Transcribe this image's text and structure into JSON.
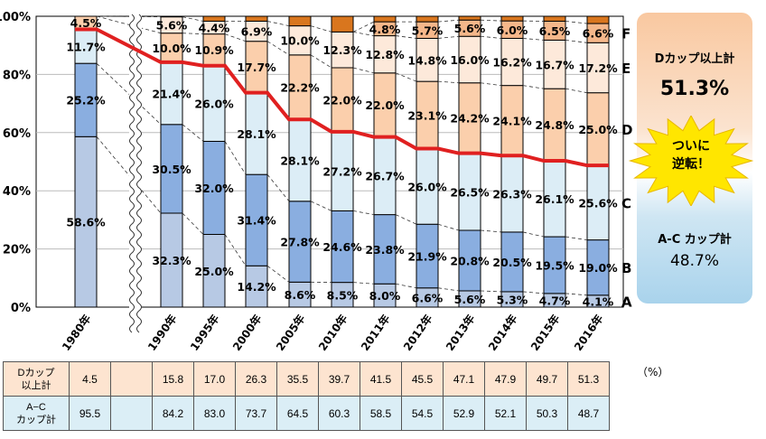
{
  "chart_data": {
    "type": "bar",
    "stacked": true,
    "categories": [
      "1980年",
      "1990年",
      "1995年",
      "2000年",
      "2005年",
      "2010年",
      "2011年",
      "2012年",
      "2013年",
      "2014年",
      "2015年",
      "2016年"
    ],
    "series": [
      {
        "name": "A",
        "color": "#b7c9e4",
        "values": [
          58.6,
          32.3,
          25.0,
          14.2,
          8.6,
          8.5,
          8.0,
          6.6,
          5.6,
          5.3,
          4.7,
          4.1
        ]
      },
      {
        "name": "B",
        "color": "#8aaee0",
        "values": [
          25.2,
          30.5,
          32.0,
          31.4,
          27.8,
          24.6,
          23.8,
          21.9,
          20.8,
          20.5,
          19.5,
          19.0
        ]
      },
      {
        "name": "C",
        "color": "#dcedf6",
        "values": [
          11.7,
          21.4,
          26.0,
          28.1,
          28.1,
          27.2,
          26.7,
          26.0,
          26.5,
          26.3,
          26.1,
          25.6
        ]
      },
      {
        "name": "D",
        "color": "#fbcfac",
        "values": [
          4.5,
          10.0,
          10.9,
          17.7,
          22.2,
          22.0,
          22.0,
          23.1,
          24.2,
          24.1,
          24.8,
          25.0
        ]
      },
      {
        "name": "E",
        "color": "#fde9da",
        "values": [
          null,
          5.6,
          4.4,
          6.9,
          10.0,
          12.3,
          12.8,
          14.8,
          16.0,
          16.2,
          16.7,
          17.2
        ]
      },
      {
        "name": "F",
        "color": "#f5b78a",
        "values": [
          null,
          null,
          null,
          null,
          null,
          null,
          4.8,
          5.7,
          5.6,
          6.0,
          6.5,
          6.6
        ]
      }
    ],
    "top_color": "#d9761e",
    "line": {
      "name": "A-C カップ計",
      "color": "#e02020",
      "values": [
        95.5,
        84.2,
        83.0,
        73.7,
        64.5,
        60.3,
        58.5,
        54.5,
        52.9,
        52.1,
        50.3,
        48.7
      ]
    },
    "yticks": [
      "0%",
      "20%",
      "40%",
      "60%",
      "80%",
      "100%"
    ],
    "ylim": [
      0,
      100
    ]
  },
  "legend": {
    "d_label": "Dカップ以上計",
    "d_value": "51.3%",
    "callout": [
      "ついに",
      "逆転！"
    ],
    "ac_label": "A-C カップ計",
    "ac_value": "48.7%"
  },
  "table": {
    "unit": "（%）",
    "rows": [
      {
        "label": [
          "Dカップ",
          "以上計"
        ],
        "values": [
          "4.5",
          "",
          "15.8",
          "17.0",
          "26.3",
          "35.5",
          "39.7",
          "41.5",
          "45.5",
          "47.1",
          "47.9",
          "49.7",
          "51.3"
        ]
      },
      {
        "label": [
          "A−C",
          "カップ計"
        ],
        "values": [
          "95.5",
          "",
          "84.2",
          "83.0",
          "73.7",
          "64.5",
          "60.3",
          "58.5",
          "54.5",
          "52.9",
          "52.1",
          "50.3",
          "48.7"
        ]
      }
    ]
  }
}
